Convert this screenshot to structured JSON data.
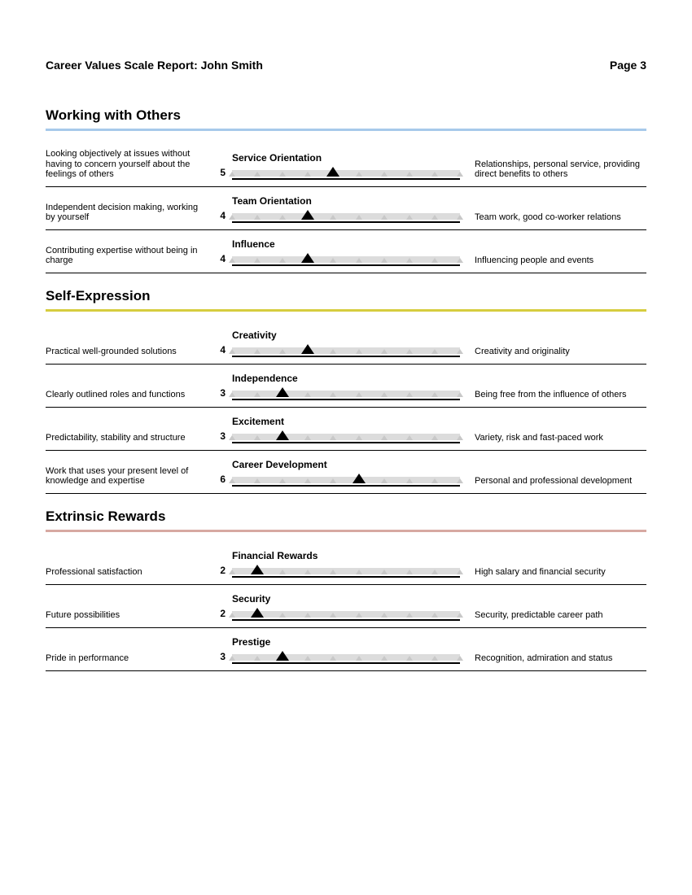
{
  "header": {
    "title": "Career Values Scale Report: John Smith",
    "page": "Page 3"
  },
  "scale": {
    "min": 1,
    "max": 10,
    "tick_color": "#c8c8c8",
    "track_color": "#dcdcdc",
    "marker_color": "#000000"
  },
  "sections": [
    {
      "title": "Working with Others",
      "underline_color": "#a7c9ea",
      "scales": [
        {
          "name": "Service Orientation",
          "score": 5,
          "left": "Looking objectively at issues without having to concern yourself about the feelings of others",
          "right": "Relationships, personal service, providing direct benefits to others"
        },
        {
          "name": "Team Orientation",
          "score": 4,
          "left": "Independent decision making, working by yourself",
          "right": "Team work, good co-worker relations"
        },
        {
          "name": "Influence",
          "score": 4,
          "left": "Contributing expertise without being in charge",
          "right": "Influencing people and events"
        }
      ]
    },
    {
      "title": "Self-Expression",
      "underline_color": "#d6cd3f",
      "scales": [
        {
          "name": "Creativity",
          "score": 4,
          "left": "Practical well-grounded solutions",
          "right": "Creativity and originality"
        },
        {
          "name": "Independence",
          "score": 3,
          "left": "Clearly outlined roles and functions",
          "right": "Being free from the influence of others"
        },
        {
          "name": "Excitement",
          "score": 3,
          "left": "Predictability, stability and structure",
          "right": "Variety, risk and fast-paced work"
        },
        {
          "name": "Career Development",
          "score": 6,
          "left": "Work that uses your present level of knowledge and expertise",
          "right": "Personal and professional development"
        }
      ]
    },
    {
      "title": "Extrinsic Rewards",
      "underline_color": "#d7a9a2",
      "scales": [
        {
          "name": "Financial Rewards",
          "score": 2,
          "left": "Professional satisfaction",
          "right": "High salary and financial security"
        },
        {
          "name": "Security",
          "score": 2,
          "left": "Future possibilities",
          "right": "Security, predictable career path"
        },
        {
          "name": "Prestige",
          "score": 3,
          "left": "Pride in performance",
          "right": "Recognition, admiration and status"
        }
      ]
    }
  ]
}
